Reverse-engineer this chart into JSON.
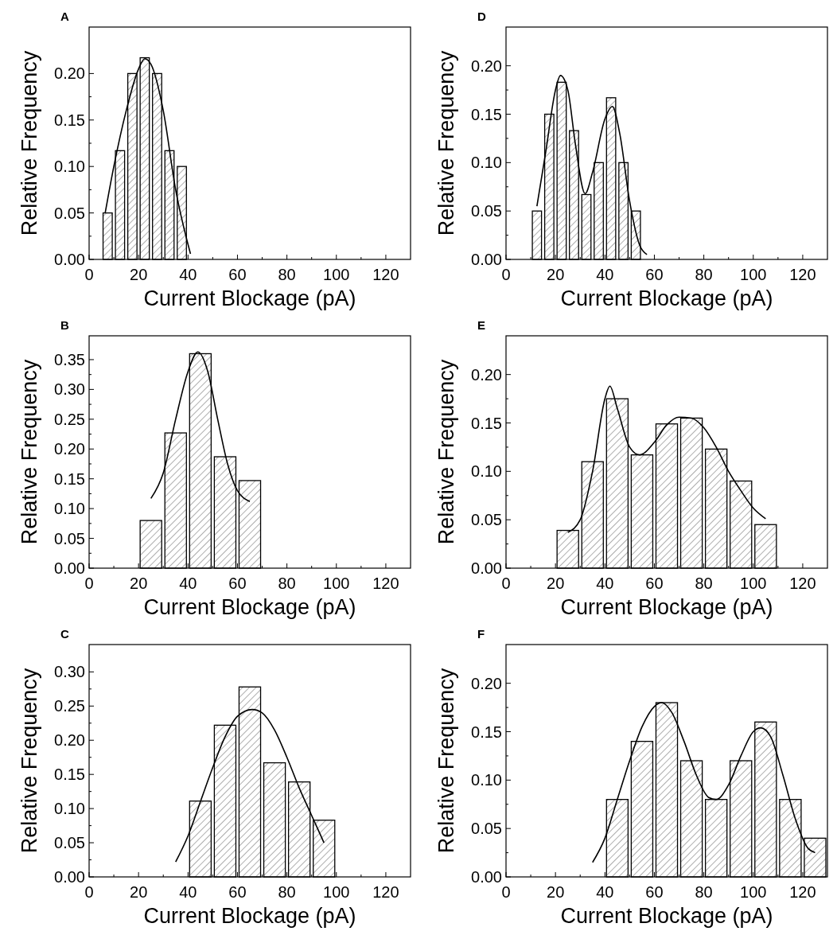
{
  "chart_data": [
    {
      "type": "histogram",
      "title": "A",
      "xlabel": "Current Blockage (pA)",
      "ylabel": "Relative Frequency",
      "bins": [
        5,
        10,
        15,
        20,
        25,
        30,
        35,
        40
      ],
      "values": [
        0.05,
        0.117,
        0.2,
        0.217,
        0.2,
        0.117,
        0.1
      ],
      "xlim": [
        0,
        130
      ],
      "xticks": [
        0,
        20,
        40,
        60,
        80,
        100,
        120
      ],
      "ylim": [
        0,
        0.25
      ],
      "yticks": [
        {
          "value": 0,
          "label": "0.00"
        },
        {
          "value": 0.05,
          "label": "0.05"
        },
        {
          "value": 0.1,
          "label": "0.10"
        },
        {
          "value": 0.15,
          "label": "0.15"
        },
        {
          "value": 0.2,
          "label": "0.20"
        }
      ],
      "series": [
        {
          "type": "line",
          "color": "#000000",
          "x": [
            6.5,
            10,
            15,
            20,
            22.5,
            25,
            30,
            35,
            41
          ],
          "values": [
            0.05,
            0.1,
            0.16,
            0.205,
            0.216,
            0.21,
            0.16,
            0.075,
            0.006
          ]
        }
      ]
    },
    {
      "type": "histogram",
      "title": "D",
      "xlabel": "Current Blockage (pA)",
      "ylabel": "Relative Frequency",
      "bins": [
        10,
        15,
        20,
        25,
        30,
        35,
        40,
        45,
        50,
        55
      ],
      "values": [
        0.05,
        0.15,
        0.183,
        0.133,
        0.067,
        0.1,
        0.167,
        0.1,
        0.05
      ],
      "xlim": [
        0,
        130
      ],
      "xticks": [
        0,
        20,
        40,
        60,
        80,
        100,
        120
      ],
      "ylim": [
        0,
        0.24
      ],
      "yticks": [
        {
          "value": 0,
          "label": "0.00"
        },
        {
          "value": 0.05,
          "label": "0.05"
        },
        {
          "value": 0.1,
          "label": "0.10"
        },
        {
          "value": 0.15,
          "label": "0.15"
        },
        {
          "value": 0.2,
          "label": "0.20"
        }
      ],
      "series": [
        {
          "type": "line",
          "color": "#000000",
          "x": [
            12.5,
            16,
            20,
            22,
            25,
            28,
            32,
            35,
            40,
            43,
            46,
            50,
            54,
            57
          ],
          "values": [
            0.055,
            0.11,
            0.175,
            0.19,
            0.175,
            0.12,
            0.068,
            0.09,
            0.145,
            0.158,
            0.13,
            0.06,
            0.015,
            0.005
          ]
        }
      ]
    },
    {
      "type": "histogram",
      "title": "B",
      "xlabel": "Current Blockage (pA)",
      "ylabel": "Relative Frequency",
      "bins": [
        20,
        30,
        40,
        50,
        60,
        70
      ],
      "values": [
        0.08,
        0.227,
        0.36,
        0.187,
        0.147
      ],
      "xlim": [
        0,
        130
      ],
      "xticks": [
        0,
        20,
        40,
        60,
        80,
        100,
        120
      ],
      "ylim": [
        0,
        0.39
      ],
      "yticks": [
        {
          "value": 0,
          "label": "0.00"
        },
        {
          "value": 0.05,
          "label": "0.05"
        },
        {
          "value": 0.1,
          "label": "0.10"
        },
        {
          "value": 0.15,
          "label": "0.15"
        },
        {
          "value": 0.2,
          "label": "0.20"
        },
        {
          "value": 0.25,
          "label": "0.25"
        },
        {
          "value": 0.3,
          "label": "0.30"
        },
        {
          "value": 0.35,
          "label": "0.35"
        }
      ],
      "series": [
        {
          "type": "line",
          "color": "#000000",
          "x": [
            25,
            30,
            35,
            40,
            44,
            48,
            52,
            56,
            60,
            65
          ],
          "values": [
            0.117,
            0.16,
            0.25,
            0.33,
            0.363,
            0.33,
            0.25,
            0.175,
            0.13,
            0.112
          ]
        }
      ]
    },
    {
      "type": "histogram",
      "title": "E",
      "xlabel": "Current Blockage (pA)",
      "ylabel": "Relative Frequency",
      "bins": [
        20,
        30,
        40,
        50,
        60,
        70,
        80,
        90,
        100,
        110
      ],
      "values": [
        0.039,
        0.11,
        0.175,
        0.117,
        0.149,
        0.155,
        0.123,
        0.09,
        0.045
      ],
      "xlim": [
        0,
        130
      ],
      "xticks": [
        0,
        20,
        40,
        60,
        80,
        100,
        120
      ],
      "ylim": [
        0,
        0.24
      ],
      "yticks": [
        {
          "value": 0,
          "label": "0.00"
        },
        {
          "value": 0.05,
          "label": "0.05"
        },
        {
          "value": 0.1,
          "label": "0.10"
        },
        {
          "value": 0.15,
          "label": "0.15"
        },
        {
          "value": 0.2,
          "label": "0.20"
        }
      ],
      "series": [
        {
          "type": "line",
          "color": "#000000",
          "x": [
            25,
            30,
            35,
            40,
            42,
            45,
            50,
            54,
            60,
            65,
            70,
            75,
            80,
            85,
            90,
            95,
            100,
            105
          ],
          "values": [
            0.037,
            0.05,
            0.1,
            0.175,
            0.188,
            0.165,
            0.125,
            0.117,
            0.13,
            0.148,
            0.156,
            0.155,
            0.145,
            0.125,
            0.1,
            0.08,
            0.062,
            0.051
          ]
        }
      ]
    },
    {
      "type": "histogram",
      "title": "C",
      "xlabel": "Current Blockage (pA)",
      "ylabel": "Relative Frequency",
      "bins": [
        40,
        50,
        60,
        70,
        80,
        90,
        100
      ],
      "values": [
        0.111,
        0.222,
        0.278,
        0.167,
        0.139,
        0.083
      ],
      "xlim": [
        0,
        130
      ],
      "xticks": [
        0,
        20,
        40,
        60,
        80,
        100,
        120
      ],
      "ylim": [
        0,
        0.34
      ],
      "yticks": [
        {
          "value": 0,
          "label": "0.00"
        },
        {
          "value": 0.05,
          "label": "0.05"
        },
        {
          "value": 0.1,
          "label": "0.10"
        },
        {
          "value": 0.15,
          "label": "0.15"
        },
        {
          "value": 0.2,
          "label": "0.20"
        },
        {
          "value": 0.25,
          "label": "0.25"
        },
        {
          "value": 0.3,
          "label": "0.30"
        }
      ],
      "series": [
        {
          "type": "line",
          "color": "#000000",
          "x": [
            35,
            40,
            45,
            50,
            55,
            60,
            66,
            70,
            75,
            80,
            85,
            90,
            95
          ],
          "values": [
            0.022,
            0.06,
            0.11,
            0.16,
            0.205,
            0.235,
            0.245,
            0.24,
            0.215,
            0.175,
            0.13,
            0.09,
            0.05
          ]
        }
      ]
    },
    {
      "type": "histogram",
      "title": "F",
      "xlabel": "Current Blockage (pA)",
      "ylabel": "Relative Frequency",
      "bins": [
        40,
        50,
        60,
        70,
        80,
        90,
        100,
        110,
        120,
        130
      ],
      "values": [
        0.08,
        0.14,
        0.18,
        0.12,
        0.08,
        0.12,
        0.16,
        0.08,
        0.04
      ],
      "xlim": [
        0,
        130
      ],
      "xticks": [
        0,
        20,
        40,
        60,
        80,
        100,
        120
      ],
      "ylim": [
        0,
        0.24
      ],
      "yticks": [
        {
          "value": 0,
          "label": "0.00"
        },
        {
          "value": 0.05,
          "label": "0.05"
        },
        {
          "value": 0.1,
          "label": "0.10"
        },
        {
          "value": 0.15,
          "label": "0.15"
        },
        {
          "value": 0.2,
          "label": "0.20"
        }
      ],
      "series": [
        {
          "type": "line",
          "color": "#000000",
          "x": [
            35,
            40,
            45,
            50,
            55,
            60,
            63,
            67,
            72,
            77,
            82,
            85,
            90,
            95,
            100,
            103,
            107,
            112,
            117,
            122,
            125
          ],
          "values": [
            0.015,
            0.04,
            0.08,
            0.12,
            0.155,
            0.176,
            0.18,
            0.17,
            0.14,
            0.105,
            0.082,
            0.08,
            0.095,
            0.125,
            0.15,
            0.154,
            0.145,
            0.105,
            0.06,
            0.03,
            0.025
          ]
        }
      ]
    }
  ]
}
